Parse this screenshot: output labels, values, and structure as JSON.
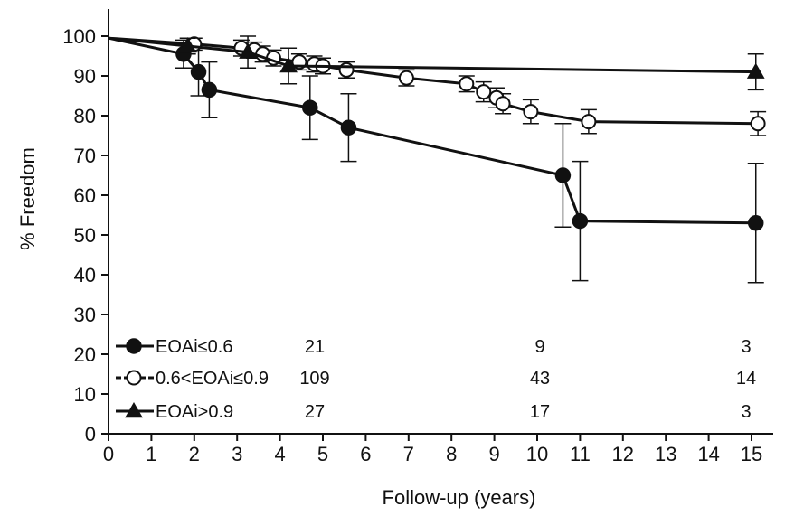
{
  "chart_data": {
    "type": "line",
    "xlabel": "Follow-up (years)",
    "ylabel": "% Freedom",
    "xlim": [
      0,
      16
    ],
    "ylim": [
      0,
      100
    ],
    "xticks": [
      0,
      1,
      2,
      3,
      4,
      5,
      6,
      7,
      8,
      9,
      10,
      11,
      12,
      13,
      14,
      15
    ],
    "yticks": [
      0,
      10,
      20,
      30,
      40,
      50,
      60,
      70,
      80,
      90,
      100
    ],
    "grid": false,
    "legend_position": "bottom-left",
    "series": [
      {
        "name": "EOAi≤0.6",
        "marker": "filled-circle",
        "points": [
          {
            "x": 0,
            "y": 99.5
          },
          {
            "x": 1.75,
            "y": 95.5,
            "err": 3.5
          },
          {
            "x": 2.1,
            "y": 91,
            "err": 6
          },
          {
            "x": 2.35,
            "y": 86.5,
            "err": 7
          },
          {
            "x": 4.7,
            "y": 82,
            "err": 8
          },
          {
            "x": 5.6,
            "y": 77,
            "err": 8.5
          },
          {
            "x": 10.6,
            "y": 65,
            "err": 13
          },
          {
            "x": 11,
            "y": 53.5,
            "err": 15
          },
          {
            "x": 15.1,
            "y": 53,
            "err": 15
          }
        ],
        "at_risk": [
          "21",
          "9",
          "3"
        ]
      },
      {
        "name": "0.6<EOAi≤0.9",
        "marker": "open-circle",
        "points": [
          {
            "x": 0,
            "y": 99.5
          },
          {
            "x": 2.0,
            "y": 98,
            "err": 1.5
          },
          {
            "x": 3.1,
            "y": 97,
            "err": 2
          },
          {
            "x": 3.4,
            "y": 96.5,
            "err": 2
          },
          {
            "x": 3.6,
            "y": 95.5,
            "err": 2
          },
          {
            "x": 3.85,
            "y": 94.5,
            "err": 2
          },
          {
            "x": 4.45,
            "y": 93.5,
            "err": 2
          },
          {
            "x": 4.8,
            "y": 93,
            "err": 2
          },
          {
            "x": 5.0,
            "y": 92.5,
            "err": 2
          },
          {
            "x": 5.55,
            "y": 91.5,
            "err": 2
          },
          {
            "x": 6.95,
            "y": 89.5,
            "err": 2
          },
          {
            "x": 8.35,
            "y": 88,
            "err": 2
          },
          {
            "x": 8.75,
            "y": 86,
            "err": 2.5
          },
          {
            "x": 9.05,
            "y": 84.5,
            "err": 2.5
          },
          {
            "x": 9.2,
            "y": 83,
            "err": 2.5
          },
          {
            "x": 9.85,
            "y": 81,
            "err": 3
          },
          {
            "x": 11.2,
            "y": 78.5,
            "err": 3
          },
          {
            "x": 15.15,
            "y": 78,
            "err": 3
          }
        ],
        "at_risk": [
          "109",
          "43",
          "14"
        ]
      },
      {
        "name": "EOAi>0.9",
        "marker": "filled-triangle",
        "points": [
          {
            "x": 0,
            "y": 99.5
          },
          {
            "x": 1.85,
            "y": 97.5,
            "err": 2
          },
          {
            "x": 3.25,
            "y": 96,
            "err": 4
          },
          {
            "x": 4.2,
            "y": 92.5,
            "err": 4.5
          },
          {
            "x": 15.1,
            "y": 91,
            "err": 4.5
          }
        ],
        "at_risk": [
          "27",
          "17",
          "3"
        ]
      }
    ]
  },
  "colors": {
    "line": "#111111",
    "background": "#ffffff"
  }
}
